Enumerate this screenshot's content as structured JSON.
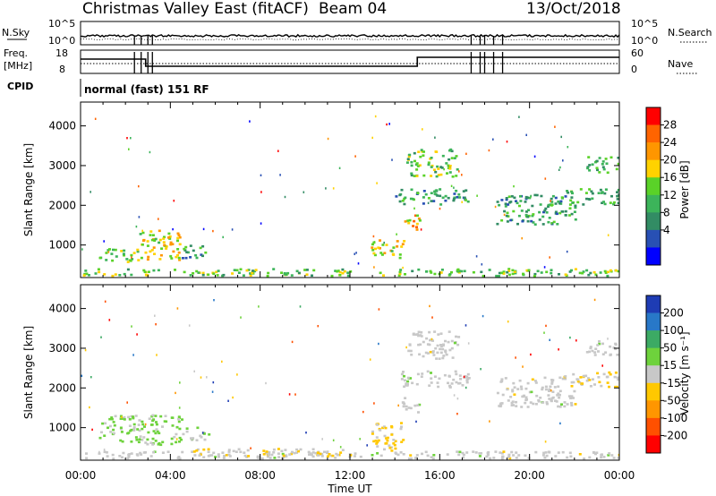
{
  "header": {
    "title": "Christmas Valley East (fitACF)",
    "beam": "Beam 04",
    "date": "13/Oct/2018"
  },
  "top_panel": {
    "left_label": "N.Sky",
    "left_ticks": [
      "10^5",
      "10^0"
    ],
    "right_label": "N.Search",
    "right_ticks": [
      "10^5",
      "10^0"
    ]
  },
  "freq_panel": {
    "left_label_line1": "Freq.",
    "left_label_line2": "[MHz]",
    "left_ticks": [
      "18",
      "8"
    ],
    "right_label": "Nave",
    "right_ticks": [
      "60",
      "0"
    ]
  },
  "cpid_panel": {
    "label": "CPID",
    "mode_text": "normal (fast) 151 RF"
  },
  "axes": {
    "ylabel": "Slant Range [km]",
    "yticks": [
      "4000",
      "3000",
      "2000",
      "1000"
    ],
    "xlabel": "Time UT",
    "xticks": [
      "00:00",
      "04:00",
      "08:00",
      "12:00",
      "16:00",
      "20:00",
      "00:00"
    ]
  },
  "power_scale": {
    "label": "Power [dB]",
    "ticks": [
      "28",
      "24",
      "20",
      "16",
      "12",
      "8",
      "4"
    ],
    "colors": [
      "#ff0000",
      "#ff6400",
      "#ff9600",
      "#ffd200",
      "#5ad228",
      "#3cb45a",
      "#328c64",
      "#2850b4",
      "#0000ff"
    ]
  },
  "velocity_scale": {
    "label": "Velocity [m s⁻¹]",
    "ticks": [
      "200",
      "100",
      "50",
      "15",
      "-15",
      "-50",
      "-100",
      "-200"
    ],
    "colors": [
      "#1e3cb4",
      "#2878c8",
      "#3caa64",
      "#6ed23c",
      "#c8c8c8",
      "#ffc800",
      "#ff9600",
      "#ff5000",
      "#ff0000"
    ]
  },
  "chart_data": [
    {
      "type": "heatmap",
      "panel": "power",
      "ylabel": "Slant Range [km]",
      "xlabel": "Time UT",
      "xlim": [
        0,
        24
      ],
      "ylim": [
        180,
        4600
      ],
      "colorbar_label": "Power [dB]",
      "colorbar_range": [
        0,
        30
      ],
      "regions": [
        {
          "t0": 0.0,
          "t1": 24.0,
          "r0": 200,
          "r1": 380,
          "value": 14
        },
        {
          "t0": 0.8,
          "t1": 2.5,
          "r0": 550,
          "r1": 900,
          "value": 14
        },
        {
          "t0": 2.5,
          "t1": 4.5,
          "r0": 600,
          "r1": 1350,
          "value": 18
        },
        {
          "t0": 4.5,
          "t1": 5.7,
          "r0": 650,
          "r1": 1000,
          "value": 10
        },
        {
          "t0": 12.9,
          "t1": 14.4,
          "r0": 650,
          "r1": 1100,
          "value": 18
        },
        {
          "t0": 14.3,
          "t1": 15.1,
          "r0": 1350,
          "r1": 1750,
          "value": 20
        },
        {
          "t0": 14.0,
          "t1": 17.3,
          "r0": 2000,
          "r1": 2400,
          "value": 10
        },
        {
          "t0": 14.5,
          "t1": 16.8,
          "r0": 2700,
          "r1": 3400,
          "value": 14
        },
        {
          "t0": 18.5,
          "t1": 22.0,
          "r0": 1500,
          "r1": 2250,
          "value": 10
        },
        {
          "t0": 21.5,
          "t1": 24.0,
          "r0": 2000,
          "r1": 2400,
          "value": 12
        },
        {
          "t0": 22.5,
          "t1": 24.0,
          "r0": 2800,
          "r1": 3200,
          "value": 12
        }
      ]
    },
    {
      "type": "heatmap",
      "panel": "velocity",
      "ylabel": "Slant Range [km]",
      "xlabel": "Time UT",
      "xlim": [
        0,
        24
      ],
      "ylim": [
        180,
        4600
      ],
      "colorbar_label": "Velocity [m s⁻¹]",
      "colorbar_range": [
        -250,
        250
      ],
      "regions": [
        {
          "t0": 0.0,
          "t1": 24.0,
          "r0": 200,
          "r1": 380,
          "value": 0
        },
        {
          "t0": 0.8,
          "t1": 4.5,
          "r0": 550,
          "r1": 1300,
          "value": 40
        },
        {
          "t0": 4.5,
          "t1": 5.7,
          "r0": 650,
          "r1": 1000,
          "value": 30
        },
        {
          "t0": 5.0,
          "t1": 12.0,
          "r0": 250,
          "r1": 450,
          "value": -20
        },
        {
          "t0": 12.9,
          "t1": 14.4,
          "r0": 400,
          "r1": 1100,
          "value": -40
        },
        {
          "t0": 14.3,
          "t1": 15.1,
          "r0": 1350,
          "r1": 1750,
          "value": 0
        },
        {
          "t0": 14.0,
          "t1": 17.3,
          "r0": 2000,
          "r1": 2400,
          "value": 0
        },
        {
          "t0": 14.5,
          "t1": 16.8,
          "r0": 2700,
          "r1": 3400,
          "value": 0
        },
        {
          "t0": 18.5,
          "t1": 22.0,
          "r0": 1500,
          "r1": 2250,
          "value": 0
        },
        {
          "t0": 21.5,
          "t1": 24.0,
          "r0": 2000,
          "r1": 2400,
          "value": -20
        },
        {
          "t0": 22.5,
          "t1": 24.0,
          "r0": 2800,
          "r1": 3200,
          "value": 0
        }
      ]
    }
  ]
}
